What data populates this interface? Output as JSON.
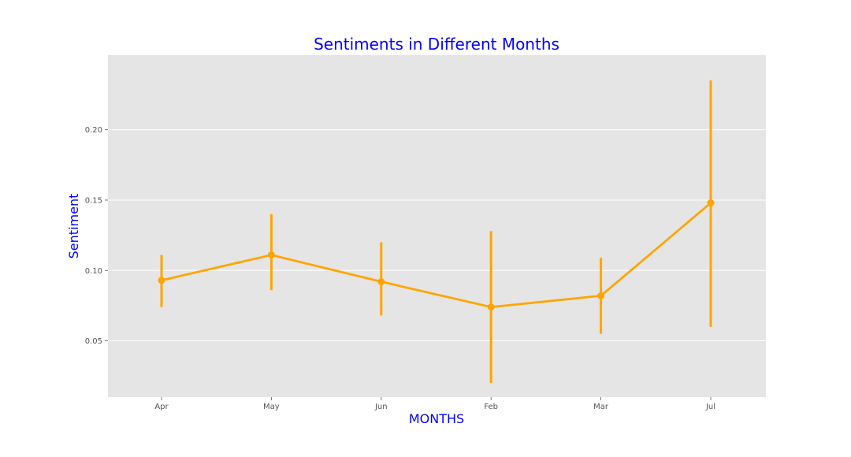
{
  "chart_data": {
    "type": "line",
    "title": "Sentiments in Different Months",
    "xlabel": "MONTHS",
    "ylabel": "Sentiment",
    "categories": [
      "Apr",
      "May",
      "Jun",
      "Feb",
      "Mar",
      "Jul"
    ],
    "series": [
      {
        "values": [
          0.093,
          0.111,
          0.092,
          0.074,
          0.082,
          0.148
        ],
        "error_low": [
          0.074,
          0.086,
          0.068,
          0.02,
          0.055,
          0.06
        ],
        "error_high": [
          0.111,
          0.14,
          0.12,
          0.128,
          0.109,
          0.235
        ],
        "color": "#FFA500"
      }
    ],
    "yticks": [
      0.05,
      0.1,
      0.15,
      0.2
    ],
    "ytick_labels": [
      "0.05",
      "0.10",
      "0.15",
      "0.20"
    ],
    "ylim": [
      0.01,
      0.253
    ],
    "grid": true,
    "colors": {
      "title": "#0000FF",
      "axis_labels": "#0000FF",
      "plot_background": "#E5E5E5",
      "grid": "#FFFFFF",
      "series": "#FFA500"
    }
  }
}
